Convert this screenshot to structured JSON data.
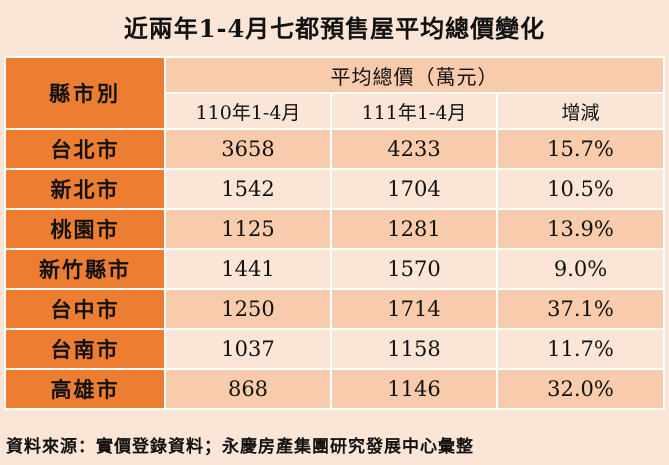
{
  "title": "近兩年1-4月七都預售屋平均總價變化",
  "table": {
    "county_header": "縣市別",
    "group_header": "平均總價（萬元）",
    "columns": [
      "110年1-4月",
      "111年1-4月",
      "增減"
    ],
    "rows": [
      {
        "county": "台北市",
        "y110": "3658",
        "y111": "4233",
        "change": "15.7%"
      },
      {
        "county": "新北市",
        "y110": "1542",
        "y111": "1704",
        "change": "10.5%"
      },
      {
        "county": "桃園市",
        "y110": "1125",
        "y111": "1281",
        "change": "13.9%"
      },
      {
        "county": "新竹縣市",
        "y110": "1441",
        "y111": "1570",
        "change": "9.0%"
      },
      {
        "county": "台中市",
        "y110": "1250",
        "y111": "1714",
        "change": "37.1%"
      },
      {
        "county": "台南市",
        "y110": "1037",
        "y111": "1158",
        "change": "11.7%"
      },
      {
        "county": "高雄市",
        "y110": "868",
        "y111": "1146",
        "change": "32.0%"
      }
    ]
  },
  "source": "資料來源：實價登錄資料；永慶房產集團研究發展中心彙整",
  "colors": {
    "header_orange": "#ed7d31",
    "row_dark": "#f8cbad",
    "row_light": "#fbe5d6"
  }
}
